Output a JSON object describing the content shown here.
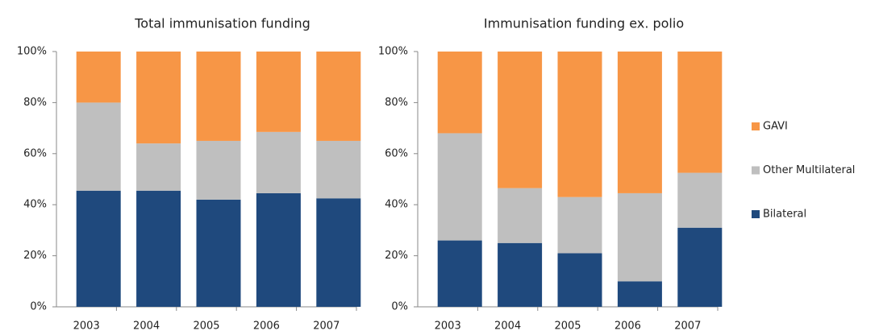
{
  "chart_data": [
    {
      "type": "bar",
      "stacked": true,
      "title": "Total immunisation funding",
      "categories": [
        "2003",
        "2004",
        "2005",
        "2006",
        "2007"
      ],
      "series": [
        {
          "name": "Bilateral",
          "color": "#1f497d",
          "values": [
            45.5,
            45.5,
            42,
            44.5,
            42.5
          ]
        },
        {
          "name": "Other Multilateral",
          "color": "#bfbfbf",
          "values": [
            34.5,
            18.5,
            23,
            24,
            22.5
          ]
        },
        {
          "name": "GAVI",
          "color": "#f79646",
          "values": [
            20,
            36,
            35,
            31.5,
            35
          ]
        }
      ],
      "ylim": [
        0,
        100
      ],
      "yticks": [
        {
          "value": 0,
          "label": "0%"
        },
        {
          "value": 20,
          "label": "20%"
        },
        {
          "value": 40,
          "label": "40%"
        },
        {
          "value": 60,
          "label": "60%"
        },
        {
          "value": 80,
          "label": "80%"
        },
        {
          "value": 100,
          "label": "100%"
        }
      ],
      "legend": "right"
    },
    {
      "type": "bar",
      "stacked": true,
      "title": "Immunisation funding ex. polio",
      "categories": [
        "2003",
        "2004",
        "2005",
        "2006",
        "2007"
      ],
      "series": [
        {
          "name": "Bilateral",
          "color": "#1f497d",
          "values": [
            26,
            25,
            21,
            10,
            31
          ]
        },
        {
          "name": "Other Multilateral",
          "color": "#bfbfbf",
          "values": [
            42,
            21.5,
            22,
            34.5,
            21.5
          ]
        },
        {
          "name": "GAVI",
          "color": "#f79646",
          "values": [
            32,
            53.5,
            57,
            55.5,
            47.5
          ]
        }
      ],
      "ylim": [
        0,
        100
      ],
      "yticks": [
        {
          "value": 0,
          "label": "0%"
        },
        {
          "value": 20,
          "label": "20%"
        },
        {
          "value": 40,
          "label": "40%"
        },
        {
          "value": 60,
          "label": "60%"
        },
        {
          "value": 80,
          "label": "80%"
        },
        {
          "value": 100,
          "label": "100%"
        }
      ]
    }
  ]
}
